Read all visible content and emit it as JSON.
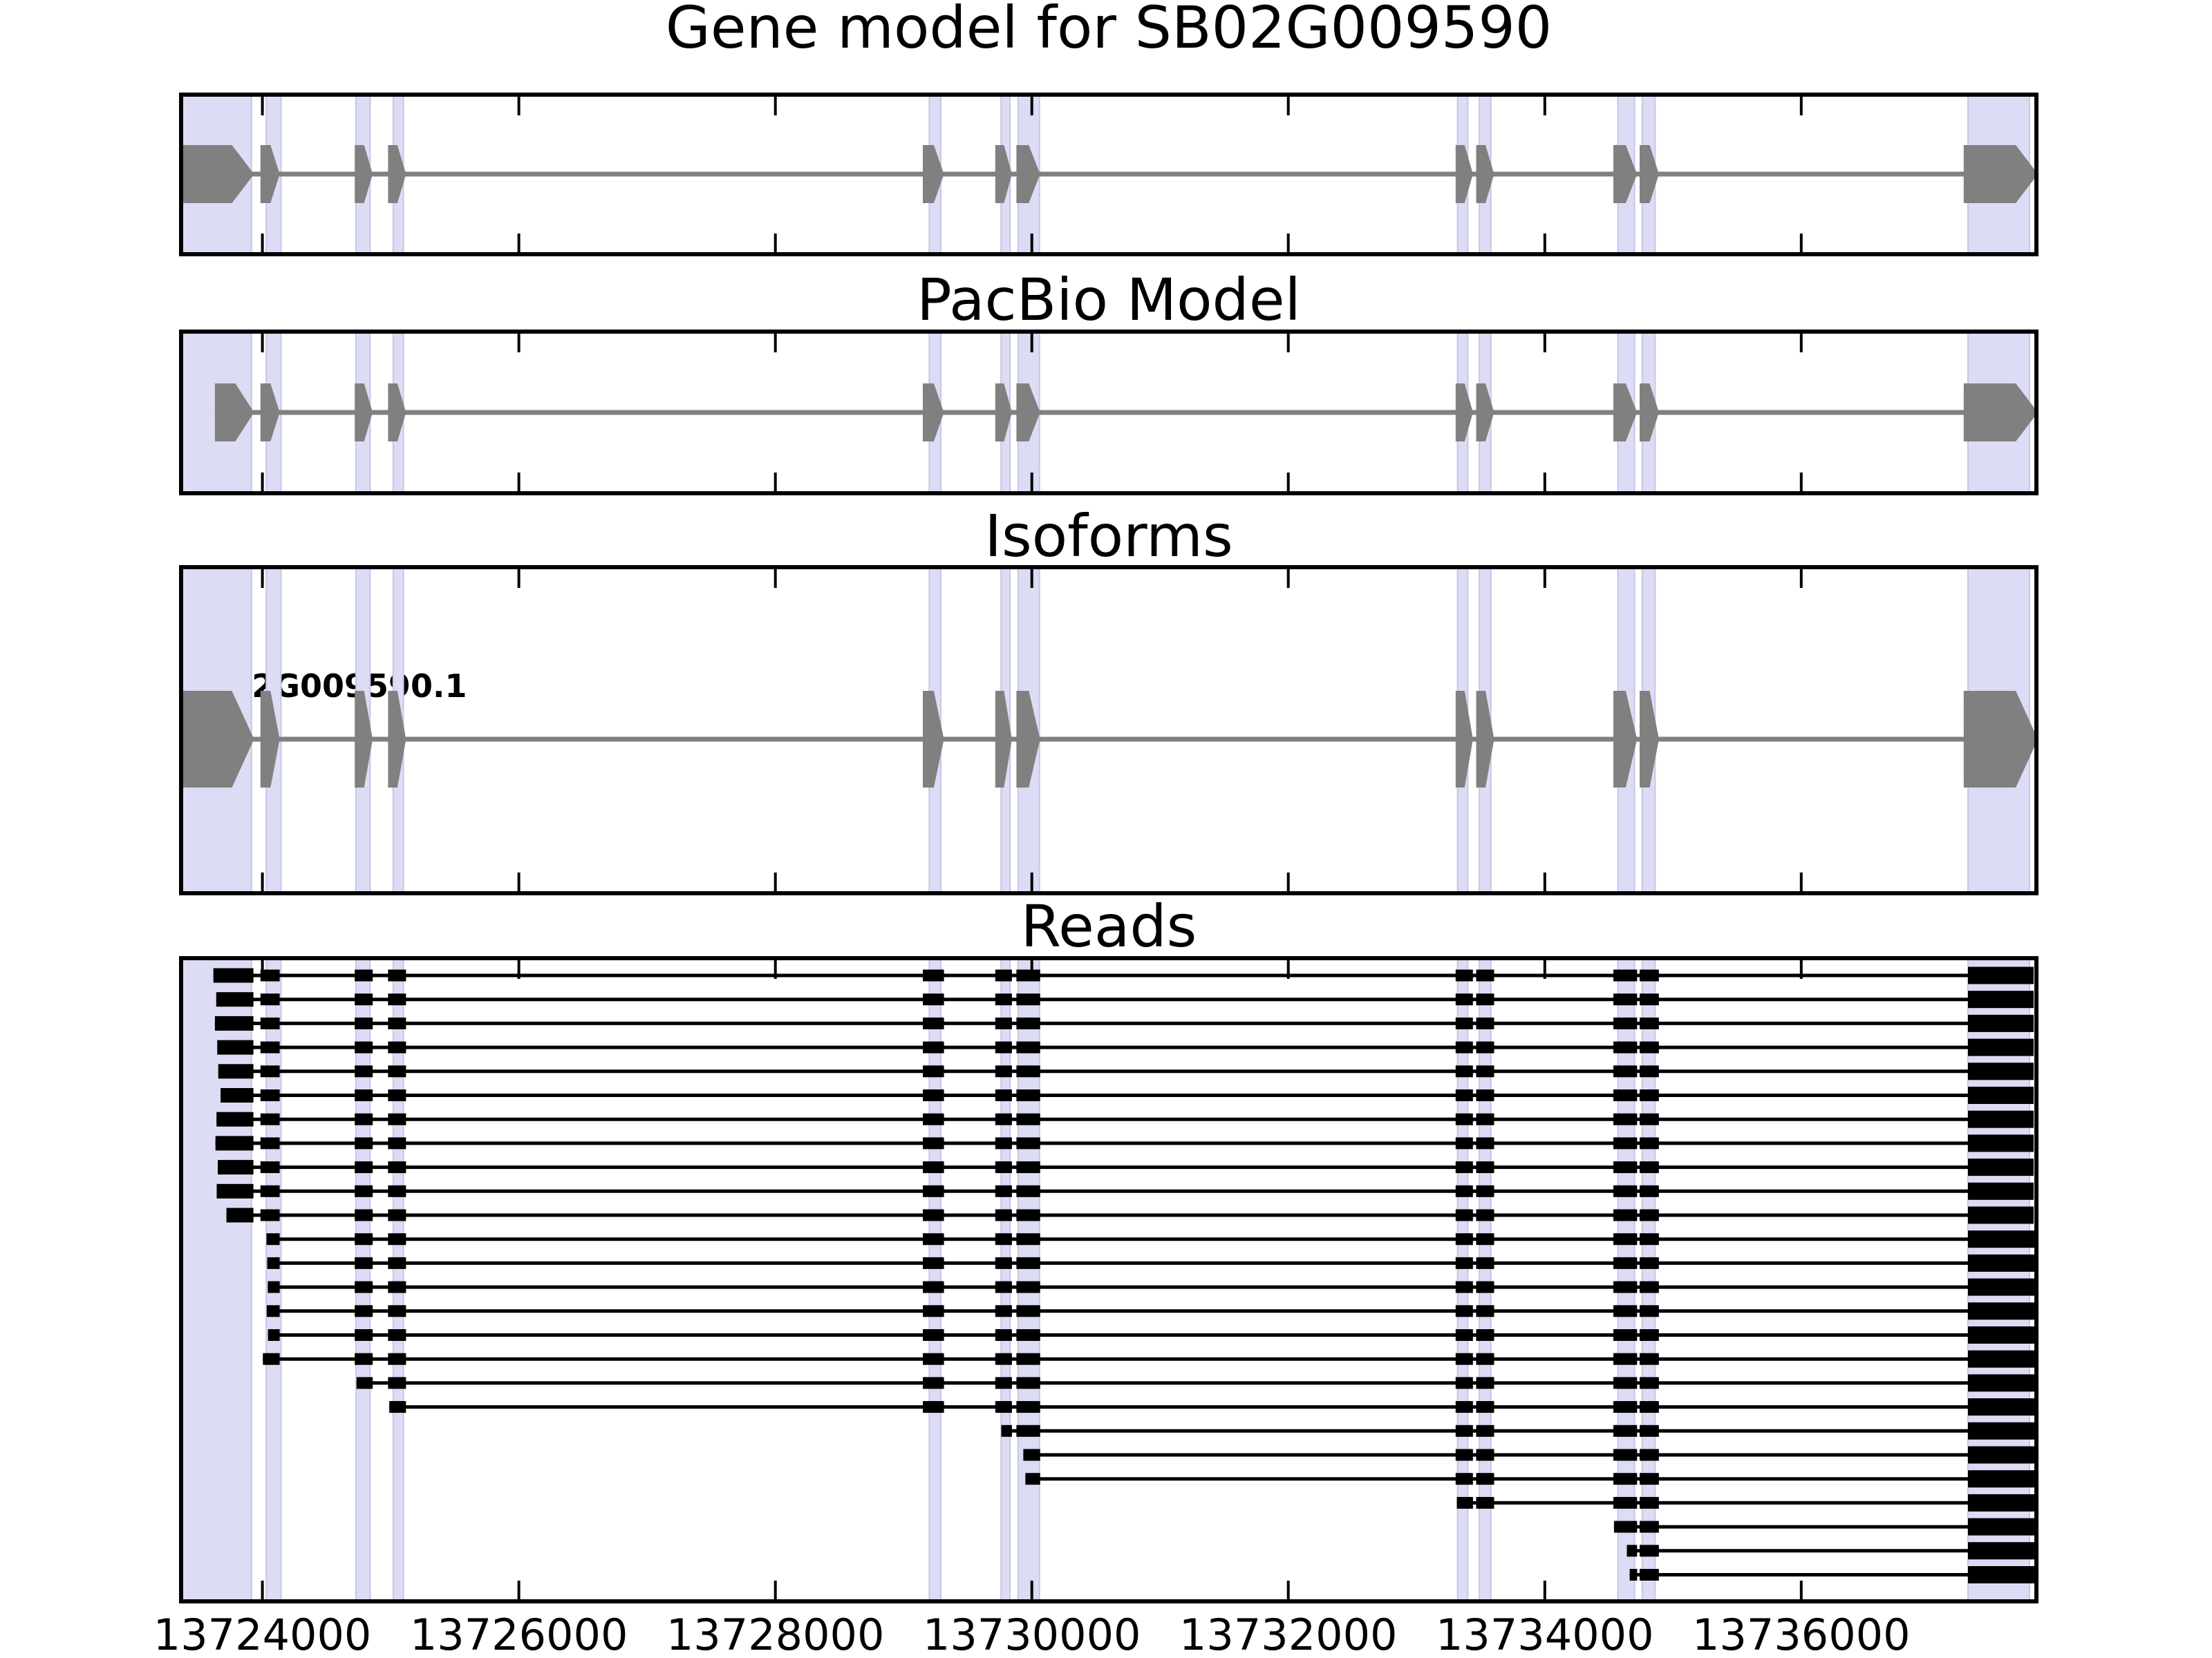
{
  "figure": {
    "titles": {
      "gene_model": "Gene model for SB02G009590",
      "pacbio": "PacBio Model",
      "isoforms": "Isoforms",
      "reads": "Reads"
    },
    "isoform_label": "SB02G009590.1"
  },
  "colors": {
    "exon_gray": "#808080",
    "intron_gray": "#808080",
    "read_black": "#000000",
    "band_fill": "#dcdcf5",
    "band_edge": "#c6c6e9",
    "panel_border": "#000000",
    "background": "#ffffff",
    "text": "#000000"
  },
  "chart_data": {
    "type": "gene-model-tracks",
    "title": "Gene model for SB02G009590",
    "track_names": [
      "Gene model for SB02G009590",
      "PacBio Model",
      "Isoforms",
      "Reads"
    ],
    "x_axis": {
      "xmin": 13723350,
      "xmax": 13737850,
      "ticks": [
        13724000,
        13726000,
        13728000,
        13730000,
        13732000,
        13734000,
        13736000
      ],
      "tick_labels": [
        "13724000",
        "13726000",
        "13728000",
        "13730000",
        "13732000",
        "13734000",
        "13736000"
      ]
    },
    "highlight_bands": [
      [
        13723375,
        13723915
      ],
      [
        13724030,
        13724145
      ],
      [
        13724730,
        13724840
      ],
      [
        13725020,
        13725100
      ],
      [
        13729200,
        13729290
      ],
      [
        13729760,
        13729830
      ],
      [
        13729893,
        13730060
      ],
      [
        13733320,
        13733400
      ],
      [
        13733490,
        13733580
      ],
      [
        13734570,
        13734700
      ],
      [
        13734760,
        13734860
      ],
      [
        13737300,
        13737780
      ]
    ],
    "gene_model_exons": [
      [
        13723365,
        13723935
      ],
      [
        13723985,
        13724135
      ],
      [
        13724720,
        13724860
      ],
      [
        13724980,
        13725120
      ],
      [
        13729150,
        13729315
      ],
      [
        13729715,
        13729845
      ],
      [
        13729880,
        13730065
      ],
      [
        13733305,
        13733440
      ],
      [
        13733465,
        13733605
      ],
      [
        13734535,
        13734720
      ],
      [
        13734740,
        13734890
      ],
      [
        13737267,
        13737845
      ]
    ],
    "pacbio_exons": [
      [
        13723630,
        13723935
      ],
      [
        13723985,
        13724135
      ],
      [
        13724720,
        13724860
      ],
      [
        13724980,
        13725120
      ],
      [
        13729150,
        13729315
      ],
      [
        13729715,
        13729845
      ],
      [
        13729880,
        13730065
      ],
      [
        13733305,
        13733440
      ],
      [
        13733465,
        13733605
      ],
      [
        13734535,
        13734720
      ],
      [
        13734740,
        13734890
      ],
      [
        13737267,
        13737845
      ]
    ],
    "isoform": {
      "name": "SB02G009590.1",
      "exons": [
        [
          13723365,
          13723935
        ],
        [
          13723985,
          13724135
        ],
        [
          13724720,
          13724860
        ],
        [
          13724980,
          13725120
        ],
        [
          13729150,
          13729315
        ],
        [
          13729715,
          13729845
        ],
        [
          13729880,
          13730065
        ],
        [
          13733305,
          13733440
        ],
        [
          13733465,
          13733605
        ],
        [
          13734535,
          13734720
        ],
        [
          13734740,
          13734890
        ],
        [
          13737267,
          13737845
        ]
      ]
    },
    "read_exon_template": [
      [
        13723600,
        13723930
      ],
      [
        13723985,
        13724135
      ],
      [
        13724720,
        13724860
      ],
      [
        13724980,
        13725120
      ],
      [
        13729150,
        13729315
      ],
      [
        13729715,
        13729845
      ],
      [
        13729880,
        13730065
      ],
      [
        13733305,
        13733440
      ],
      [
        13733465,
        13733605
      ],
      [
        13734535,
        13734720
      ],
      [
        13734740,
        13734890
      ]
    ],
    "read_end_block_start": 13737300,
    "reads": [
      {
        "start": 13723618,
        "end": 13737812
      },
      {
        "start": 13723640,
        "end": 13737812
      },
      {
        "start": 13723630,
        "end": 13737812
      },
      {
        "start": 13723648,
        "end": 13737812
      },
      {
        "start": 13723656,
        "end": 13737812
      },
      {
        "start": 13723674,
        "end": 13737812
      },
      {
        "start": 13723642,
        "end": 13737812
      },
      {
        "start": 13723634,
        "end": 13737812
      },
      {
        "start": 13723652,
        "end": 13737812
      },
      {
        "start": 13723644,
        "end": 13737812
      },
      {
        "start": 13723720,
        "end": 13737812
      },
      {
        "start": 13724032,
        "end": 13737848
      },
      {
        "start": 13724038,
        "end": 13737848
      },
      {
        "start": 13724042,
        "end": 13737848
      },
      {
        "start": 13724034,
        "end": 13737848
      },
      {
        "start": 13724044,
        "end": 13737848
      },
      {
        "start": 13724004,
        "end": 13737848
      },
      {
        "start": 13724734,
        "end": 13737848
      },
      {
        "start": 13724990,
        "end": 13737848
      },
      {
        "start": 13729762,
        "end": 13737848
      },
      {
        "start": 13729934,
        "end": 13737848
      },
      {
        "start": 13729950,
        "end": 13737848
      },
      {
        "start": 13733314,
        "end": 13737848
      },
      {
        "start": 13734540,
        "end": 13737848
      },
      {
        "start": 13734640,
        "end": 13737848
      },
      {
        "start": 13734662,
        "end": 13737848
      }
    ]
  }
}
